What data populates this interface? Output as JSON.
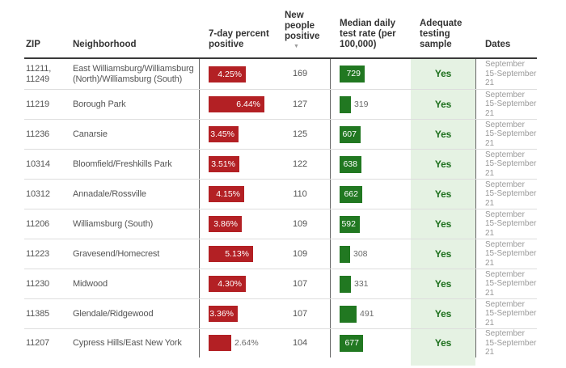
{
  "ui": {
    "sort_icon": "▼",
    "colors": {
      "bar_red": "#b32024",
      "bar_green": "#217821",
      "adequate_bg": "#e5f2e3",
      "yes_text": "#1b6e1b",
      "header_text": "#333333",
      "header_line": "#3a3a3a",
      "body_text": "#555555",
      "outside_label": "#6b6b6b",
      "dates_text": "#999999",
      "row_separator": "#dddddd",
      "column_divider": "#666666"
    }
  },
  "chart_data": {
    "type": "table",
    "columns": [
      "ZIP",
      "Neighborhood",
      "7-day percent positive",
      "New people positive",
      "Median daily test rate (per 100,000)",
      "Adequate testing sample",
      "Dates"
    ],
    "sorted_by": "New people positive",
    "sort_order": "descending",
    "rows": [
      {
        "zip": "11211, 11249",
        "neighborhood": "East Williamsburg/Williamsburg (North)/Williamsburg (South)",
        "pct_positive": 4.25,
        "new_positive": 169,
        "median_daily_test_rate": 729,
        "adequate_sample": "Yes",
        "dates": "September 15-September 21"
      },
      {
        "zip": "11219",
        "neighborhood": "Borough Park",
        "pct_positive": 6.44,
        "new_positive": 127,
        "median_daily_test_rate": 319,
        "adequate_sample": "Yes",
        "dates": "September 15-September 21"
      },
      {
        "zip": "11236",
        "neighborhood": "Canarsie",
        "pct_positive": 3.45,
        "new_positive": 125,
        "median_daily_test_rate": 607,
        "adequate_sample": "Yes",
        "dates": "September 15-September 21"
      },
      {
        "zip": "10314",
        "neighborhood": "Bloomfield/Freshkills Park",
        "pct_positive": 3.51,
        "new_positive": 122,
        "median_daily_test_rate": 638,
        "adequate_sample": "Yes",
        "dates": "September 15-September 21"
      },
      {
        "zip": "10312",
        "neighborhood": "Annadale/Rossville",
        "pct_positive": 4.15,
        "new_positive": 110,
        "median_daily_test_rate": 662,
        "adequate_sample": "Yes",
        "dates": "September 15-September 21"
      },
      {
        "zip": "11206",
        "neighborhood": "Williamsburg (South)",
        "pct_positive": 3.86,
        "new_positive": 109,
        "median_daily_test_rate": 592,
        "adequate_sample": "Yes",
        "dates": "September 15-September 21"
      },
      {
        "zip": "11223",
        "neighborhood": "Gravesend/Homecrest",
        "pct_positive": 5.13,
        "new_positive": 109,
        "median_daily_test_rate": 308,
        "adequate_sample": "Yes",
        "dates": "September 15-September 21"
      },
      {
        "zip": "11230",
        "neighborhood": "Midwood",
        "pct_positive": 4.3,
        "new_positive": 107,
        "median_daily_test_rate": 331,
        "adequate_sample": "Yes",
        "dates": "September 15-September 21"
      },
      {
        "zip": "11385",
        "neighborhood": "Glendale/Ridgewood",
        "pct_positive": 3.36,
        "new_positive": 107,
        "median_daily_test_rate": 491,
        "adequate_sample": "Yes",
        "dates": "September 15-September 21"
      },
      {
        "zip": "11207",
        "neighborhood": "Cypress Hills/East New York",
        "pct_positive": 2.64,
        "new_positive": 104,
        "median_daily_test_rate": 677,
        "adequate_sample": "Yes",
        "dates": "September 15-September 21"
      }
    ]
  }
}
